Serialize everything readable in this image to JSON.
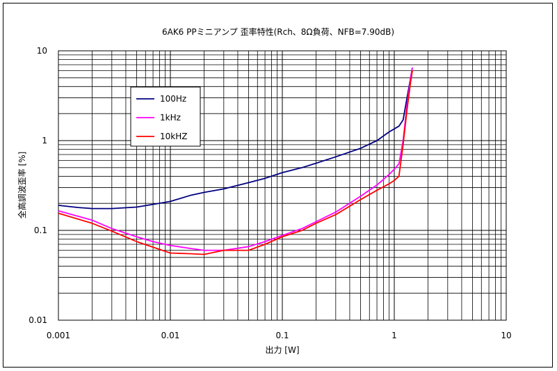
{
  "chart_data": {
    "type": "line",
    "title": "6AK6 PPミニアンプ 歪率特性(Rch、8Ω負荷、NFB=7.90dB)",
    "xlabel": "出力 [W]",
    "ylabel": "全高調波歪率 [%]",
    "xscale": "log",
    "yscale": "log",
    "xlim": [
      0.001,
      10
    ],
    "ylim": [
      0.01,
      10
    ],
    "xticks": [
      "0.001",
      "0.01",
      "0.1",
      "1",
      "10"
    ],
    "yticks": [
      "10",
      "1",
      "0.1",
      "0.01"
    ],
    "grid": true,
    "legend_position": "upper-left",
    "series": [
      {
        "name": "100Hz",
        "color": "#000080",
        "points": [
          [
            0.001,
            0.19
          ],
          [
            0.0015,
            0.18
          ],
          [
            0.002,
            0.175
          ],
          [
            0.003,
            0.175
          ],
          [
            0.005,
            0.182
          ],
          [
            0.007,
            0.195
          ],
          [
            0.01,
            0.21
          ],
          [
            0.015,
            0.245
          ],
          [
            0.02,
            0.265
          ],
          [
            0.03,
            0.29
          ],
          [
            0.05,
            0.34
          ],
          [
            0.07,
            0.38
          ],
          [
            0.1,
            0.44
          ],
          [
            0.15,
            0.5
          ],
          [
            0.2,
            0.56
          ],
          [
            0.3,
            0.66
          ],
          [
            0.5,
            0.82
          ],
          [
            0.7,
            1.0
          ],
          [
            0.9,
            1.25
          ],
          [
            1.0,
            1.35
          ],
          [
            1.1,
            1.45
          ],
          [
            1.2,
            1.7
          ],
          [
            1.3,
            3.0
          ],
          [
            1.4,
            5.0
          ],
          [
            1.45,
            6.5
          ]
        ]
      },
      {
        "name": "1kHz",
        "color": "#ff00ff",
        "points": [
          [
            0.001,
            0.165
          ],
          [
            0.002,
            0.13
          ],
          [
            0.003,
            0.105
          ],
          [
            0.005,
            0.085
          ],
          [
            0.007,
            0.075
          ],
          [
            0.01,
            0.068
          ],
          [
            0.015,
            0.063
          ],
          [
            0.02,
            0.06
          ],
          [
            0.03,
            0.06
          ],
          [
            0.05,
            0.066
          ],
          [
            0.07,
            0.075
          ],
          [
            0.1,
            0.088
          ],
          [
            0.15,
            0.105
          ],
          [
            0.2,
            0.125
          ],
          [
            0.3,
            0.16
          ],
          [
            0.5,
            0.24
          ],
          [
            0.7,
            0.32
          ],
          [
            0.9,
            0.42
          ],
          [
            1.0,
            0.48
          ],
          [
            1.1,
            0.55
          ],
          [
            1.2,
            1.0
          ],
          [
            1.3,
            2.5
          ],
          [
            1.4,
            5.0
          ],
          [
            1.45,
            6.5
          ]
        ]
      },
      {
        "name": "10kHZ",
        "color": "#ff0000",
        "points": [
          [
            0.001,
            0.155
          ],
          [
            0.002,
            0.12
          ],
          [
            0.003,
            0.098
          ],
          [
            0.005,
            0.075
          ],
          [
            0.007,
            0.065
          ],
          [
            0.01,
            0.056
          ],
          [
            0.015,
            0.055
          ],
          [
            0.02,
            0.054
          ],
          [
            0.03,
            0.06
          ],
          [
            0.05,
            0.06
          ],
          [
            0.07,
            0.07
          ],
          [
            0.1,
            0.085
          ],
          [
            0.15,
            0.1
          ],
          [
            0.2,
            0.12
          ],
          [
            0.3,
            0.15
          ],
          [
            0.5,
            0.22
          ],
          [
            0.7,
            0.28
          ],
          [
            0.9,
            0.33
          ],
          [
            1.0,
            0.36
          ],
          [
            1.1,
            0.4
          ],
          [
            1.2,
            0.9
          ],
          [
            1.3,
            2.2
          ],
          [
            1.4,
            4.5
          ],
          [
            1.45,
            6.0
          ]
        ]
      }
    ]
  }
}
